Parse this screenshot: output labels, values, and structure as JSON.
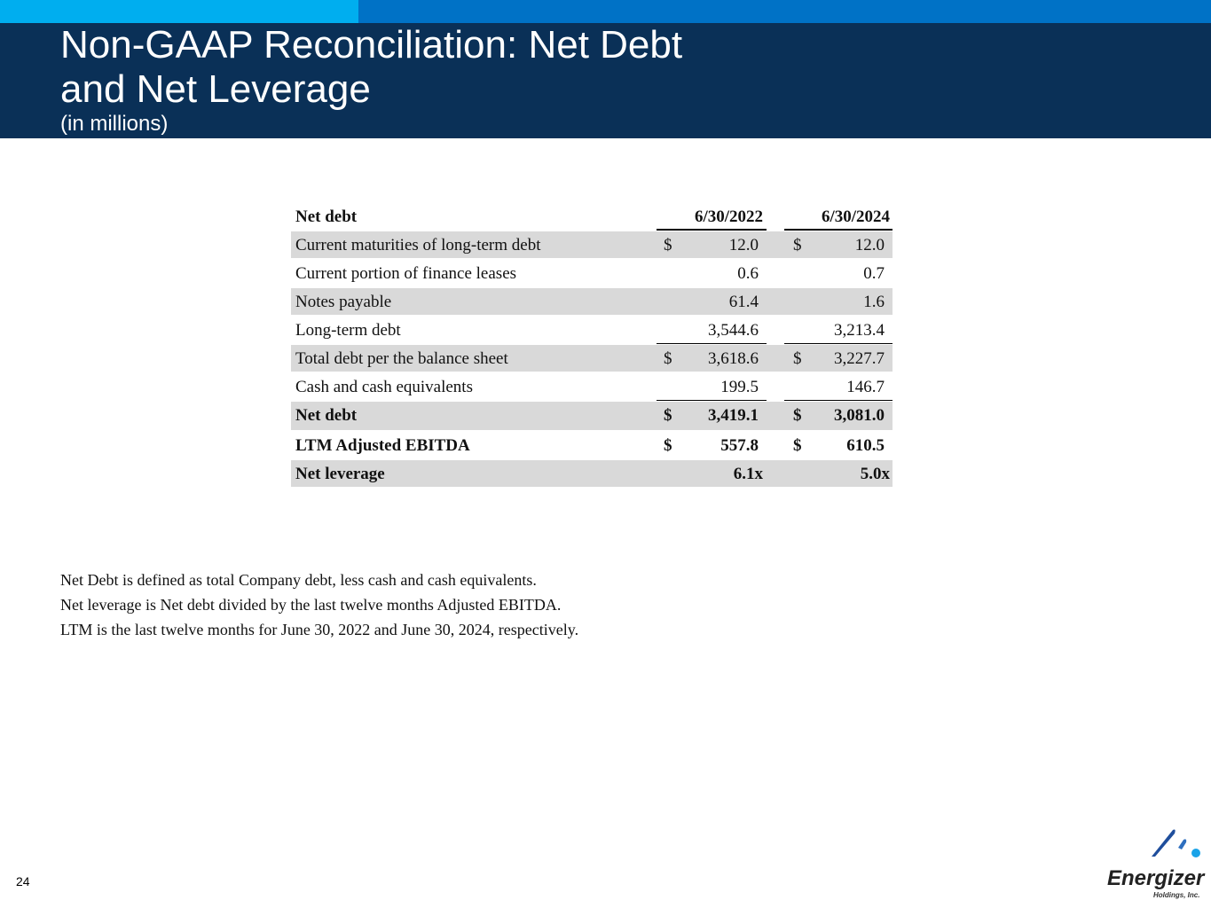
{
  "header": {
    "title": "Non-GAAP Reconciliation: Net Debt and Net Leverage",
    "subtitle": "(in millions)"
  },
  "table": {
    "title": "Net debt",
    "columns": [
      "6/30/2022",
      "6/30/2024"
    ],
    "rows": [
      {
        "label": "Current maturities of long-term debt",
        "d1": "$",
        "v1": "12.0",
        "d2": "$",
        "v2": "12.0"
      },
      {
        "label": "Current portion of finance leases",
        "d1": "",
        "v1": "0.6",
        "d2": "",
        "v2": "0.7"
      },
      {
        "label": "Notes payable",
        "d1": "",
        "v1": "61.4",
        "d2": "",
        "v2": "1.6"
      },
      {
        "label": "Long-term debt",
        "d1": "",
        "v1": "3,544.6",
        "d2": "",
        "v2": "3,213.4"
      },
      {
        "label": "Total debt per the balance sheet",
        "d1": "$",
        "v1": "3,618.6",
        "d2": "$",
        "v2": "3,227.7"
      },
      {
        "label": "Cash and cash equivalents",
        "d1": "",
        "v1": "199.5",
        "d2": "",
        "v2": "146.7"
      },
      {
        "label": "Net debt",
        "d1": "$",
        "v1": "3,419.1",
        "d2": "$",
        "v2": "3,081.0"
      },
      {
        "label": "LTM Adjusted EBITDA",
        "d1": "$",
        "v1": "557.8",
        "d2": "$",
        "v2": "610.5"
      },
      {
        "label": "Net leverage",
        "d1": "",
        "v1": "6.1x",
        "d2": "",
        "v2": "5.0x"
      }
    ]
  },
  "notes": [
    "Net Debt is defined as total Company debt, less cash and cash equivalents.",
    "Net leverage is Net debt divided by the last twelve months Adjusted EBITDA.",
    "LTM is the last twelve months for June 30, 2022 and June 30, 2024, respectively."
  ],
  "footer": {
    "page_number": "24",
    "logo_text": "Energizer",
    "logo_subtext": "Holdings, Inc."
  },
  "colors": {
    "navy": "#0A3057",
    "light_blue": "#00AEEF",
    "blue": "#0072C6",
    "row_shade": "#D9D9D9"
  }
}
